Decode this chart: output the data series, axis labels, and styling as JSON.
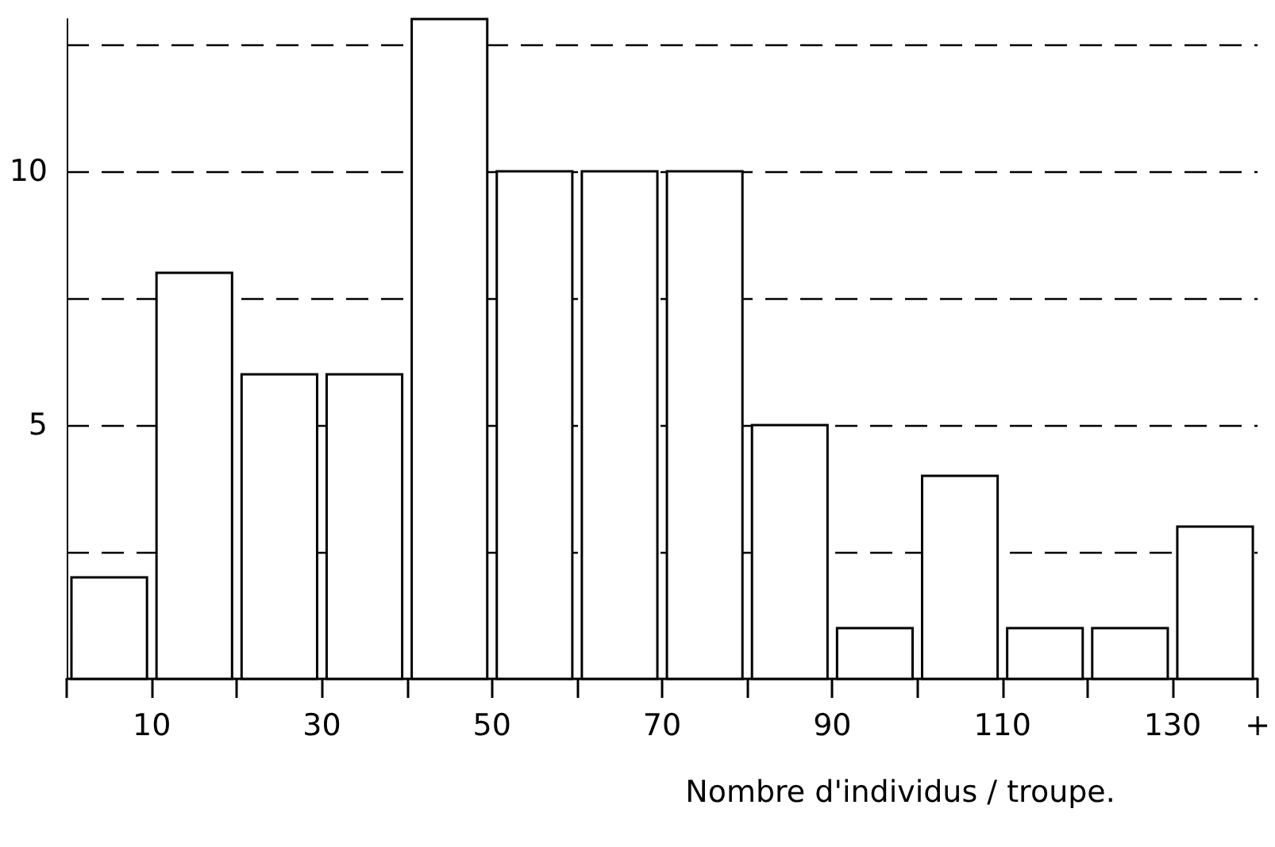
{
  "chart_data": {
    "type": "histogram",
    "xlabel": "Nombre d'individus / troupe.",
    "bins": [
      0,
      10,
      20,
      30,
      40,
      50,
      60,
      70,
      80,
      90,
      100,
      110,
      120,
      130,
      140
    ],
    "values": [
      2,
      8,
      6,
      6,
      13,
      10,
      10,
      10,
      5,
      1,
      4,
      1,
      1,
      3
    ],
    "color": "#ffffff",
    "xlim": [
      0,
      140
    ],
    "xticks": [
      {
        "value": 0,
        "label": null
      },
      {
        "value": 10,
        "label": "10"
      },
      {
        "value": 20,
        "label": null
      },
      {
        "value": 30,
        "label": "30"
      },
      {
        "value": 40,
        "label": null
      },
      {
        "value": 50,
        "label": "50"
      },
      {
        "value": 60,
        "label": null
      },
      {
        "value": 70,
        "label": "70"
      },
      {
        "value": 80,
        "label": null
      },
      {
        "value": 90,
        "label": "90"
      },
      {
        "value": 100,
        "label": null
      },
      {
        "value": 110,
        "label": "110"
      },
      {
        "value": 120,
        "label": null
      },
      {
        "value": 130,
        "label": "130"
      },
      {
        "value": 140,
        "label": "+"
      }
    ],
    "ylim": [
      0,
      13
    ],
    "yticks": [
      {
        "value": 2.5,
        "label": null
      },
      5,
      {
        "value": 7.5,
        "label": null
      },
      10,
      {
        "value": 12.5,
        "label": null
      }
    ],
    "grid": "y"
  }
}
